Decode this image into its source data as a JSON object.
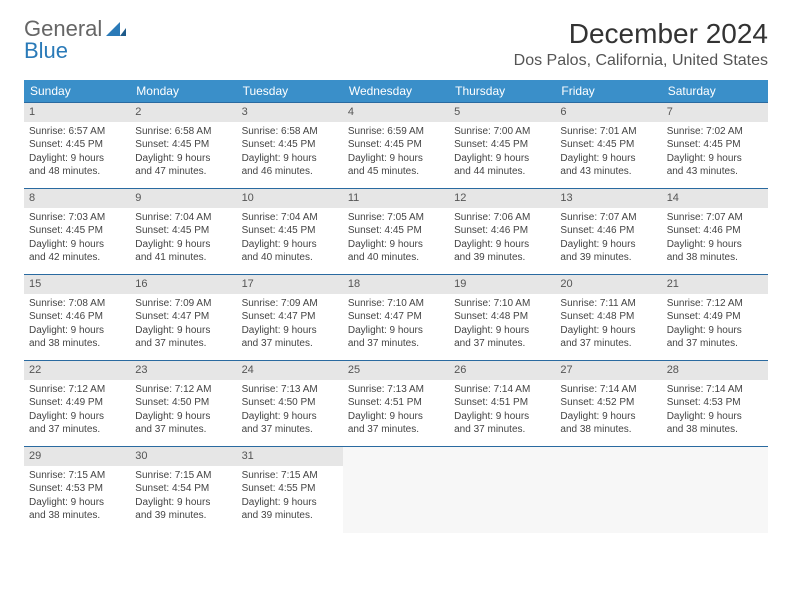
{
  "brand": {
    "text1": "General",
    "text2": "Blue"
  },
  "title": "December 2024",
  "location": "Dos Palos, California, United States",
  "header_bg": "#3a8fc9",
  "week_border": "#2a6aa0",
  "daynum_bg": "#e6e6e6",
  "columns": [
    "Sunday",
    "Monday",
    "Tuesday",
    "Wednesday",
    "Thursday",
    "Friday",
    "Saturday"
  ],
  "weeks": [
    [
      {
        "n": "1",
        "sr": "Sunrise: 6:57 AM",
        "ss": "Sunset: 4:45 PM",
        "d1": "Daylight: 9 hours",
        "d2": "and 48 minutes."
      },
      {
        "n": "2",
        "sr": "Sunrise: 6:58 AM",
        "ss": "Sunset: 4:45 PM",
        "d1": "Daylight: 9 hours",
        "d2": "and 47 minutes."
      },
      {
        "n": "3",
        "sr": "Sunrise: 6:58 AM",
        "ss": "Sunset: 4:45 PM",
        "d1": "Daylight: 9 hours",
        "d2": "and 46 minutes."
      },
      {
        "n": "4",
        "sr": "Sunrise: 6:59 AM",
        "ss": "Sunset: 4:45 PM",
        "d1": "Daylight: 9 hours",
        "d2": "and 45 minutes."
      },
      {
        "n": "5",
        "sr": "Sunrise: 7:00 AM",
        "ss": "Sunset: 4:45 PM",
        "d1": "Daylight: 9 hours",
        "d2": "and 44 minutes."
      },
      {
        "n": "6",
        "sr": "Sunrise: 7:01 AM",
        "ss": "Sunset: 4:45 PM",
        "d1": "Daylight: 9 hours",
        "d2": "and 43 minutes."
      },
      {
        "n": "7",
        "sr": "Sunrise: 7:02 AM",
        "ss": "Sunset: 4:45 PM",
        "d1": "Daylight: 9 hours",
        "d2": "and 43 minutes."
      }
    ],
    [
      {
        "n": "8",
        "sr": "Sunrise: 7:03 AM",
        "ss": "Sunset: 4:45 PM",
        "d1": "Daylight: 9 hours",
        "d2": "and 42 minutes."
      },
      {
        "n": "9",
        "sr": "Sunrise: 7:04 AM",
        "ss": "Sunset: 4:45 PM",
        "d1": "Daylight: 9 hours",
        "d2": "and 41 minutes."
      },
      {
        "n": "10",
        "sr": "Sunrise: 7:04 AM",
        "ss": "Sunset: 4:45 PM",
        "d1": "Daylight: 9 hours",
        "d2": "and 40 minutes."
      },
      {
        "n": "11",
        "sr": "Sunrise: 7:05 AM",
        "ss": "Sunset: 4:45 PM",
        "d1": "Daylight: 9 hours",
        "d2": "and 40 minutes."
      },
      {
        "n": "12",
        "sr": "Sunrise: 7:06 AM",
        "ss": "Sunset: 4:46 PM",
        "d1": "Daylight: 9 hours",
        "d2": "and 39 minutes."
      },
      {
        "n": "13",
        "sr": "Sunrise: 7:07 AM",
        "ss": "Sunset: 4:46 PM",
        "d1": "Daylight: 9 hours",
        "d2": "and 39 minutes."
      },
      {
        "n": "14",
        "sr": "Sunrise: 7:07 AM",
        "ss": "Sunset: 4:46 PM",
        "d1": "Daylight: 9 hours",
        "d2": "and 38 minutes."
      }
    ],
    [
      {
        "n": "15",
        "sr": "Sunrise: 7:08 AM",
        "ss": "Sunset: 4:46 PM",
        "d1": "Daylight: 9 hours",
        "d2": "and 38 minutes."
      },
      {
        "n": "16",
        "sr": "Sunrise: 7:09 AM",
        "ss": "Sunset: 4:47 PM",
        "d1": "Daylight: 9 hours",
        "d2": "and 37 minutes."
      },
      {
        "n": "17",
        "sr": "Sunrise: 7:09 AM",
        "ss": "Sunset: 4:47 PM",
        "d1": "Daylight: 9 hours",
        "d2": "and 37 minutes."
      },
      {
        "n": "18",
        "sr": "Sunrise: 7:10 AM",
        "ss": "Sunset: 4:47 PM",
        "d1": "Daylight: 9 hours",
        "d2": "and 37 minutes."
      },
      {
        "n": "19",
        "sr": "Sunrise: 7:10 AM",
        "ss": "Sunset: 4:48 PM",
        "d1": "Daylight: 9 hours",
        "d2": "and 37 minutes."
      },
      {
        "n": "20",
        "sr": "Sunrise: 7:11 AM",
        "ss": "Sunset: 4:48 PM",
        "d1": "Daylight: 9 hours",
        "d2": "and 37 minutes."
      },
      {
        "n": "21",
        "sr": "Sunrise: 7:12 AM",
        "ss": "Sunset: 4:49 PM",
        "d1": "Daylight: 9 hours",
        "d2": "and 37 minutes."
      }
    ],
    [
      {
        "n": "22",
        "sr": "Sunrise: 7:12 AM",
        "ss": "Sunset: 4:49 PM",
        "d1": "Daylight: 9 hours",
        "d2": "and 37 minutes."
      },
      {
        "n": "23",
        "sr": "Sunrise: 7:12 AM",
        "ss": "Sunset: 4:50 PM",
        "d1": "Daylight: 9 hours",
        "d2": "and 37 minutes."
      },
      {
        "n": "24",
        "sr": "Sunrise: 7:13 AM",
        "ss": "Sunset: 4:50 PM",
        "d1": "Daylight: 9 hours",
        "d2": "and 37 minutes."
      },
      {
        "n": "25",
        "sr": "Sunrise: 7:13 AM",
        "ss": "Sunset: 4:51 PM",
        "d1": "Daylight: 9 hours",
        "d2": "and 37 minutes."
      },
      {
        "n": "26",
        "sr": "Sunrise: 7:14 AM",
        "ss": "Sunset: 4:51 PM",
        "d1": "Daylight: 9 hours",
        "d2": "and 37 minutes."
      },
      {
        "n": "27",
        "sr": "Sunrise: 7:14 AM",
        "ss": "Sunset: 4:52 PM",
        "d1": "Daylight: 9 hours",
        "d2": "and 38 minutes."
      },
      {
        "n": "28",
        "sr": "Sunrise: 7:14 AM",
        "ss": "Sunset: 4:53 PM",
        "d1": "Daylight: 9 hours",
        "d2": "and 38 minutes."
      }
    ],
    [
      {
        "n": "29",
        "sr": "Sunrise: 7:15 AM",
        "ss": "Sunset: 4:53 PM",
        "d1": "Daylight: 9 hours",
        "d2": "and 38 minutes."
      },
      {
        "n": "30",
        "sr": "Sunrise: 7:15 AM",
        "ss": "Sunset: 4:54 PM",
        "d1": "Daylight: 9 hours",
        "d2": "and 39 minutes."
      },
      {
        "n": "31",
        "sr": "Sunrise: 7:15 AM",
        "ss": "Sunset: 4:55 PM",
        "d1": "Daylight: 9 hours",
        "d2": "and 39 minutes."
      },
      null,
      null,
      null,
      null
    ]
  ]
}
